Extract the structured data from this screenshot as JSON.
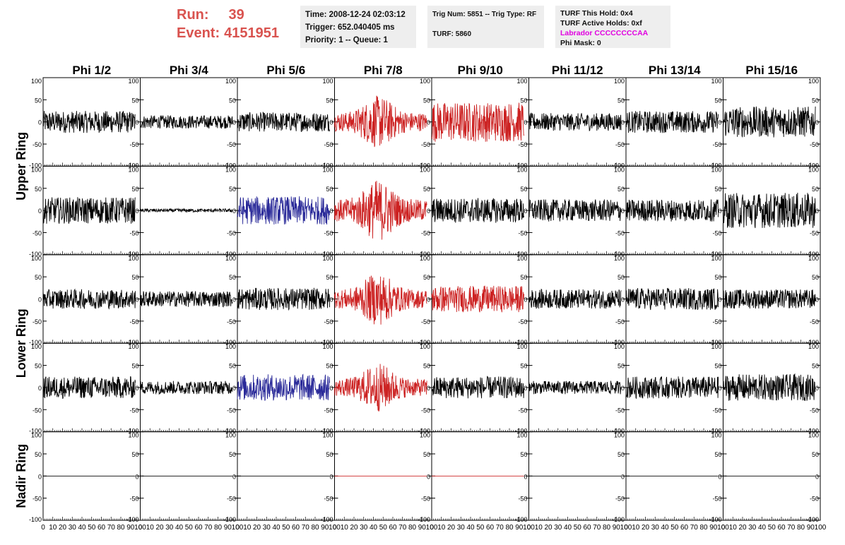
{
  "header": {
    "run_label": "Run:",
    "run_value": "39",
    "event_label": "Event:",
    "event_value": "4151951"
  },
  "info": {
    "time": "Time: 2008-12-24 02:03:12",
    "trigger": "Trigger: 652.040405 ms",
    "priority": "Priority: 1 -- Queue: 1",
    "trig_num": "Trig Num: 5851 -- Trig Type: RF",
    "turf": "TURF: 5860",
    "turf_this_hold": "TURF This Hold: 0x4",
    "turf_active_holds": "TURF Active Holds: 0xf",
    "labrador": "Labrador CCCCCCCCAA",
    "phi_mask": "Phi Mask: 0"
  },
  "colors": {
    "header_red": "#d9534f",
    "trace_black": "#000000",
    "trace_red": "#cc2222",
    "trace_blue": "#2a2a99",
    "labrador_magenta": "#e000e0"
  },
  "chart_data": {
    "type": "line",
    "columns": [
      "Phi 1/2",
      "Phi 3/4",
      "Phi 5/6",
      "Phi 7/8",
      "Phi 9/10",
      "Phi 11/12",
      "Phi 13/14",
      "Phi 15/16"
    ],
    "rows": [
      {
        "label": "Upper Ring",
        "band": 0
      },
      {
        "label": "Upper Ring",
        "band": 1
      },
      {
        "label": "Lower Ring",
        "band": 2
      },
      {
        "label": "Lower Ring",
        "band": 3
      },
      {
        "label": "Nadir Ring",
        "band": 4
      }
    ],
    "row_group_labels": [
      "Upper Ring",
      "Lower Ring",
      "Nadir Ring"
    ],
    "xlim": [
      0,
      100
    ],
    "ylim": [
      -100,
      100
    ],
    "x_ticks": [
      "0",
      "10",
      "20",
      "30",
      "40",
      "50",
      "60",
      "70",
      "80",
      "90",
      "100"
    ],
    "y_ticks": [
      "-100",
      "-50",
      "0",
      "50",
      "100"
    ],
    "trace_amplitude": [
      [
        25,
        15,
        22,
        60,
        45,
        20,
        25,
        35
      ],
      [
        30,
        4,
        32,
        70,
        28,
        25,
        25,
        40
      ],
      [
        22,
        18,
        25,
        60,
        30,
        22,
        25,
        22
      ],
      [
        25,
        15,
        30,
        55,
        25,
        15,
        25,
        30
      ],
      [
        0,
        0,
        0,
        0,
        0,
        0,
        0,
        0
      ]
    ],
    "trace_color": [
      [
        "black",
        "black",
        "black",
        "red",
        "red",
        "black",
        "black",
        "black"
      ],
      [
        "black",
        "black",
        "blue",
        "red",
        "black",
        "black",
        "black",
        "black"
      ],
      [
        "black",
        "black",
        "black",
        "red",
        "red",
        "black",
        "black",
        "black"
      ],
      [
        "black",
        "black",
        "blue",
        "red",
        "black",
        "black",
        "black",
        "black"
      ],
      [
        "black",
        "black",
        "black",
        "red",
        "red",
        "black",
        "black",
        "black"
      ]
    ],
    "grid": false
  }
}
